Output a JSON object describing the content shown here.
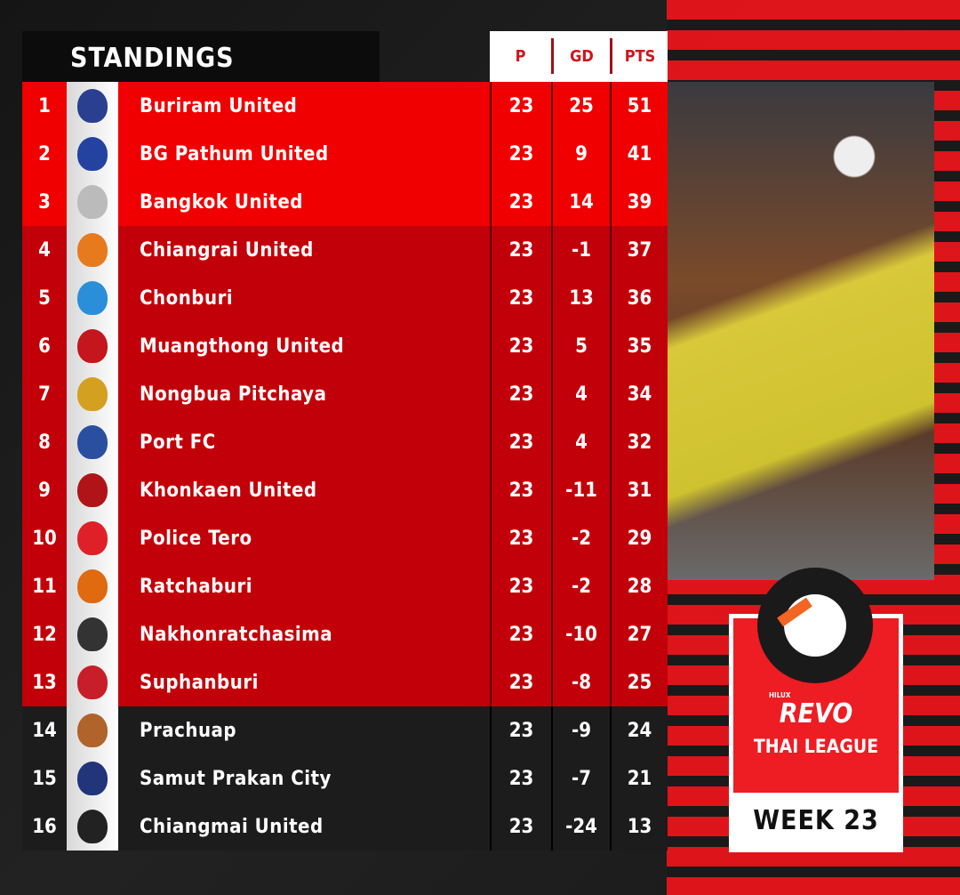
{
  "header": {
    "title": "STANDINGS",
    "columns": [
      "P",
      "GD",
      "PTS"
    ]
  },
  "rows": [
    {
      "rank": "1",
      "team": "Buriram United",
      "p": "23",
      "gd": "25",
      "pts": "51",
      "logo": "#2a3f8f"
    },
    {
      "rank": "2",
      "team": "BG Pathum United",
      "p": "23",
      "gd": "9",
      "pts": "41",
      "logo": "#2442a0"
    },
    {
      "rank": "3",
      "team": "Bangkok United",
      "p": "23",
      "gd": "14",
      "pts": "39",
      "logo": "#bbbbbb"
    },
    {
      "rank": "4",
      "team": "Chiangrai United",
      "p": "23",
      "gd": "-1",
      "pts": "37",
      "logo": "#e87a1e"
    },
    {
      "rank": "5",
      "team": "Chonburi",
      "p": "23",
      "gd": "13",
      "pts": "36",
      "logo": "#2a8fd8"
    },
    {
      "rank": "6",
      "team": "Muangthong United",
      "p": "23",
      "gd": "5",
      "pts": "35",
      "logo": "#c4161c"
    },
    {
      "rank": "7",
      "team": "Nongbua Pitchaya",
      "p": "23",
      "gd": "4",
      "pts": "34",
      "logo": "#d4a020"
    },
    {
      "rank": "8",
      "team": "Port FC",
      "p": "23",
      "gd": "4",
      "pts": "32",
      "logo": "#2a4fa0"
    },
    {
      "rank": "9",
      "team": "Khonkaen United",
      "p": "23",
      "gd": "-11",
      "pts": "31",
      "logo": "#b01418"
    },
    {
      "rank": "10",
      "team": "Police Tero",
      "p": "23",
      "gd": "-2",
      "pts": "29",
      "logo": "#e02028"
    },
    {
      "rank": "11",
      "team": "Ratchaburi",
      "p": "23",
      "gd": "-2",
      "pts": "28",
      "logo": "#e06a10"
    },
    {
      "rank": "12",
      "team": "Nakhonratchasima",
      "p": "23",
      "gd": "-10",
      "pts": "27",
      "logo": "#333333"
    },
    {
      "rank": "13",
      "team": "Suphanburi",
      "p": "23",
      "gd": "-8",
      "pts": "25",
      "logo": "#c81e2a"
    },
    {
      "rank": "14",
      "team": "Prachuap",
      "p": "23",
      "gd": "-9",
      "pts": "24",
      "logo": "#b0632a"
    },
    {
      "rank": "15",
      "team": "Samut Prakan City",
      "p": "23",
      "gd": "-7",
      "pts": "21",
      "logo": "#22357a"
    },
    {
      "rank": "16",
      "team": "Chiangmai United",
      "p": "23",
      "gd": "-24",
      "pts": "13",
      "logo": "#222222"
    }
  ],
  "badge": {
    "brand_small": "HILUX",
    "brand": "REVO",
    "league": "THAI LEAGUE",
    "week": "WEEK 23"
  }
}
